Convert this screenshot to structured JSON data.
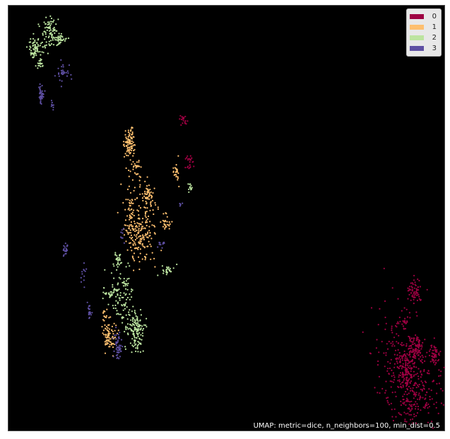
{
  "chart_data": {
    "type": "scatter",
    "title": "",
    "caption": "UMAP: metric=dice, n_neighbors=100, min_dist=0.5",
    "background": "#000000",
    "axes": {
      "ticks_visible": false,
      "grid": false
    },
    "legend": {
      "placement": "top-right",
      "entries": [
        {
          "label": "0",
          "color": "#9e0142"
        },
        {
          "label": "1",
          "color": "#fdbf6f"
        },
        {
          "label": "2",
          "color": "#bce4a0"
        },
        {
          "label": "3",
          "color": "#5e4fa2"
        }
      ]
    },
    "series": [
      {
        "name": "0",
        "color": "#9e0142",
        "clusters": [
          [
            0.93,
            0.67,
            0.008,
            0.014,
            60
          ],
          [
            0.93,
            0.8,
            0.008,
            0.016,
            80
          ],
          [
            0.91,
            0.86,
            0.01,
            0.03,
            120
          ],
          [
            0.89,
            0.82,
            0.03,
            0.06,
            160
          ],
          [
            0.95,
            0.88,
            0.03,
            0.04,
            120
          ],
          [
            0.92,
            0.93,
            0.025,
            0.03,
            80
          ],
          [
            0.975,
            0.82,
            0.006,
            0.014,
            50
          ],
          [
            0.905,
            0.74,
            0.005,
            0.01,
            20
          ],
          [
            0.4,
            0.27,
            0.004,
            0.007,
            18
          ],
          [
            0.415,
            0.37,
            0.004,
            0.009,
            25
          ]
        ]
      },
      {
        "name": "1",
        "color": "#fdbf6f",
        "clusters": [
          [
            0.275,
            0.32,
            0.006,
            0.018,
            90
          ],
          [
            0.29,
            0.38,
            0.007,
            0.015,
            30
          ],
          [
            0.32,
            0.44,
            0.006,
            0.012,
            40
          ],
          [
            0.31,
            0.52,
            0.015,
            0.045,
            140
          ],
          [
            0.28,
            0.48,
            0.008,
            0.035,
            60
          ],
          [
            0.29,
            0.55,
            0.01,
            0.02,
            50
          ],
          [
            0.36,
            0.51,
            0.005,
            0.01,
            30
          ],
          [
            0.23,
            0.775,
            0.008,
            0.018,
            80
          ],
          [
            0.22,
            0.72,
            0.003,
            0.007,
            12
          ],
          [
            0.385,
            0.39,
            0.003,
            0.015,
            25
          ]
        ]
      },
      {
        "name": "2",
        "color": "#bce4a0",
        "clusters": [
          [
            0.06,
            0.1,
            0.008,
            0.016,
            70
          ],
          [
            0.095,
            0.065,
            0.01,
            0.018,
            90
          ],
          [
            0.12,
            0.08,
            0.008,
            0.006,
            30
          ],
          [
            0.07,
            0.13,
            0.004,
            0.01,
            15
          ],
          [
            0.29,
            0.76,
            0.009,
            0.025,
            140
          ],
          [
            0.26,
            0.68,
            0.012,
            0.04,
            90
          ],
          [
            0.25,
            0.6,
            0.005,
            0.012,
            25
          ],
          [
            0.235,
            0.675,
            0.01,
            0.006,
            30
          ],
          [
            0.365,
            0.62,
            0.007,
            0.006,
            25
          ],
          [
            0.415,
            0.43,
            0.003,
            0.007,
            12
          ]
        ]
      },
      {
        "name": "3",
        "color": "#5e4fa2",
        "clusters": [
          [
            0.075,
            0.21,
            0.003,
            0.012,
            40
          ],
          [
            0.125,
            0.16,
            0.008,
            0.012,
            30
          ],
          [
            0.1,
            0.235,
            0.002,
            0.006,
            8
          ],
          [
            0.13,
            0.57,
            0.003,
            0.008,
            20
          ],
          [
            0.17,
            0.63,
            0.006,
            0.02,
            12
          ],
          [
            0.185,
            0.72,
            0.003,
            0.01,
            20
          ],
          [
            0.25,
            0.8,
            0.004,
            0.015,
            50
          ],
          [
            0.35,
            0.56,
            0.005,
            0.005,
            10
          ],
          [
            0.395,
            0.465,
            0.002,
            0.004,
            5
          ],
          [
            0.26,
            0.535,
            0.003,
            0.008,
            8
          ]
        ]
      }
    ]
  }
}
